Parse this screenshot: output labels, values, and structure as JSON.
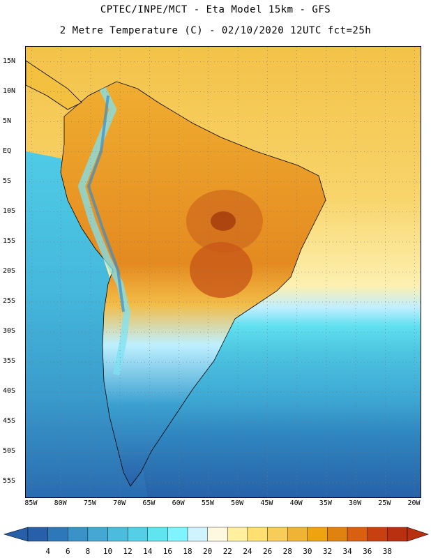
{
  "header": {
    "line1": "CPTEC/INPE/MCT -  Eta Model 15km - GFS",
    "line2": "2 Metre Temperature (C) - 02/10/2020 12UTC fct=25h"
  },
  "map": {
    "lat_labels": [
      "15N",
      "10N",
      "5N",
      "EQ",
      "5S",
      "10S",
      "15S",
      "20S",
      "25S",
      "30S",
      "35S",
      "40S",
      "45S",
      "50S",
      "55S"
    ],
    "lon_labels": [
      "85W",
      "80W",
      "75W",
      "70W",
      "65W",
      "60W",
      "55W",
      "50W",
      "45W",
      "40W",
      "35W",
      "30W",
      "25W",
      "20W"
    ],
    "lat_range": [
      17.5,
      -57.5
    ],
    "lon_range": [
      -86,
      -19
    ],
    "ocean_warm_color": "#f2c24a",
    "land_outline_color": "#000000"
  },
  "legend": {
    "values": [
      "4",
      "6",
      "8",
      "10",
      "12",
      "14",
      "16",
      "18",
      "20",
      "22",
      "24",
      "26",
      "28",
      "30",
      "32",
      "34",
      "36",
      "38"
    ],
    "colors": [
      "#2760a8",
      "#2c78b8",
      "#3a92c8",
      "#45a8d4",
      "#4cbcde",
      "#55cfe8",
      "#60e4f0",
      "#7ff4ff",
      "#cff4ff",
      "#fff8e0",
      "#fff0a0",
      "#fee070",
      "#f8cc58",
      "#f0b434",
      "#eea410",
      "#e08210",
      "#d86010",
      "#c84010",
      "#b83010"
    ]
  }
}
